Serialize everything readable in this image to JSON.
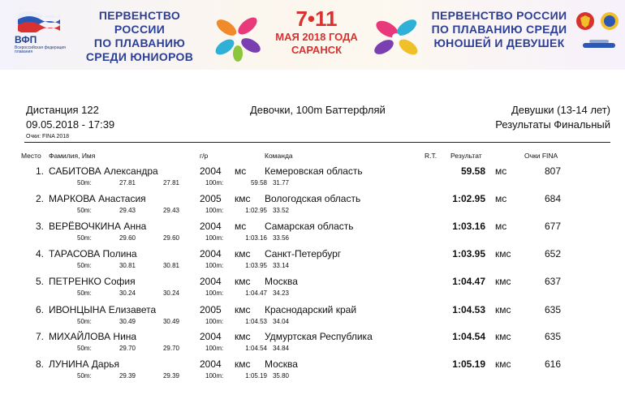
{
  "banner": {
    "org_abbr": "ВФП",
    "org_name": "Всероссийская федерация плавания",
    "title_left": [
      "ПЕРВЕНСТВО РОССИИ",
      "ПО ПЛАВАНИЮ",
      "СРЕДИ ЮНИОРОВ"
    ],
    "dates_big": "7•11",
    "dates_line1": "МАЯ 2018 ГОДА",
    "dates_line2": "САРАНСК",
    "title_right": [
      "ПЕРВЕНСТВО РОССИИ",
      "ПО ПЛАВАНИЮ СРЕДИ",
      "ЮНОШЕЙ И ДЕВУШЕК"
    ],
    "colors": {
      "title": "#2c3f96",
      "dates": "#d9312f"
    }
  },
  "header": {
    "distance": "Дистанция 122",
    "datetime": "09.05.2018 - 17:39",
    "event": "Девочки, 100m Баттерфляй",
    "category": "Девушки (13-14 лет)",
    "result_type": "Результаты Финальный",
    "points_note": "Очки: FINA 2018"
  },
  "columns": {
    "place": "Место",
    "name": "Фамилия, Имя",
    "year": "г/р",
    "team": "Команда",
    "rt": "R.T.",
    "result": "Результат",
    "points": "Очки FINA"
  },
  "rows": [
    {
      "place": "1.",
      "name": "САБИТОВА Александра",
      "year": "2004",
      "rank": "мс",
      "team": "Кемеровская область",
      "result": "59.58",
      "result_rank": "мс",
      "points": "807",
      "split1_label": "50m:",
      "split1_cum": "27.81",
      "split1_lap": "27.81",
      "split2_label": "100m:",
      "split2_cum": "59.58",
      "split2_lap": "31.77"
    },
    {
      "place": "2.",
      "name": "МАРКОВА Анастасия",
      "year": "2005",
      "rank": "кмс",
      "team": "Вологодская область",
      "result": "1:02.95",
      "result_rank": "мс",
      "points": "684",
      "split1_label": "50m:",
      "split1_cum": "29.43",
      "split1_lap": "29.43",
      "split2_label": "100m:",
      "split2_cum": "1:02.95",
      "split2_lap": "33.52"
    },
    {
      "place": "3.",
      "name": "ВЕРЁВОЧКИНА Анна",
      "year": "2004",
      "rank": "мс",
      "team": "Самарская область",
      "result": "1:03.16",
      "result_rank": "мс",
      "points": "677",
      "split1_label": "50m:",
      "split1_cum": "29.60",
      "split1_lap": "29.60",
      "split2_label": "100m:",
      "split2_cum": "1:03.16",
      "split2_lap": "33.56"
    },
    {
      "place": "4.",
      "name": "ТАРАСОВА Полина",
      "year": "2004",
      "rank": "кмс",
      "team": "Санкт-Петербург",
      "result": "1:03.95",
      "result_rank": "кмс",
      "points": "652",
      "split1_label": "50m:",
      "split1_cum": "30.81",
      "split1_lap": "30.81",
      "split2_label": "100m:",
      "split2_cum": "1:03.95",
      "split2_lap": "33.14"
    },
    {
      "place": "5.",
      "name": "ПЕТРЕНКО София",
      "year": "2004",
      "rank": "кмс",
      "team": "Москва",
      "result": "1:04.47",
      "result_rank": "кмс",
      "points": "637",
      "split1_label": "50m:",
      "split1_cum": "30.24",
      "split1_lap": "30.24",
      "split2_label": "100m:",
      "split2_cum": "1:04.47",
      "split2_lap": "34.23"
    },
    {
      "place": "6.",
      "name": "ИВОНЦЫНА Елизавета",
      "year": "2005",
      "rank": "кмс",
      "team": "Краснодарский край",
      "result": "1:04.53",
      "result_rank": "кмс",
      "points": "635",
      "split1_label": "50m:",
      "split1_cum": "30.49",
      "split1_lap": "30.49",
      "split2_label": "100m:",
      "split2_cum": "1:04.53",
      "split2_lap": "34.04"
    },
    {
      "place": "7.",
      "name": "МИХАЙЛОВА Нина",
      "year": "2004",
      "rank": "кмс",
      "team": "Удмуртская Республика",
      "result": "1:04.54",
      "result_rank": "кмс",
      "points": "635",
      "split1_label": "50m:",
      "split1_cum": "29.70",
      "split1_lap": "29.70",
      "split2_label": "100m:",
      "split2_cum": "1:04.54",
      "split2_lap": "34.84"
    },
    {
      "place": "8.",
      "name": "ЛУНИНА Дарья",
      "year": "2004",
      "rank": "кмс",
      "team": "Москва",
      "result": "1:05.19",
      "result_rank": "кмс",
      "points": "616",
      "split1_label": "50m:",
      "split1_cum": "29.39",
      "split1_lap": "29.39",
      "split2_label": "100m:",
      "split2_cum": "1:05.19",
      "split2_lap": "35.80"
    }
  ]
}
